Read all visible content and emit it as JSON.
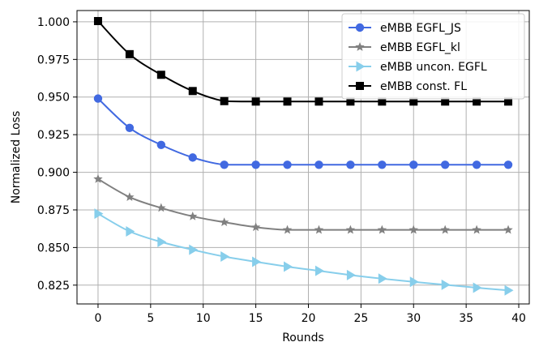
{
  "chart_data": {
    "type": "line",
    "title": "",
    "xlabel": "Rounds",
    "ylabel": "Normalized Loss",
    "xlim": [
      -2,
      41
    ],
    "ylim": [
      0.8125,
      1.0075
    ],
    "xticks": [
      0,
      5,
      10,
      15,
      20,
      25,
      30,
      35,
      40
    ],
    "yticks": [
      0.825,
      0.85,
      0.875,
      0.9,
      0.925,
      0.95,
      0.975,
      1.0
    ],
    "ytick_labels": [
      "0.825",
      "0.850",
      "0.875",
      "0.900",
      "0.925",
      "0.950",
      "0.975",
      "1.000"
    ],
    "grid": true,
    "legend_position": "top-right",
    "marker_x": [
      0,
      3,
      6,
      9,
      12,
      15,
      18,
      21,
      24,
      27,
      30,
      33,
      36,
      39
    ],
    "series": [
      {
        "name": "eMBB EGFL_JS",
        "color": "#4169e1",
        "marker": "circle",
        "values": [
          0.949,
          0.9295,
          0.9182,
          0.9098,
          0.905,
          0.905,
          0.905,
          0.905,
          0.905,
          0.905,
          0.905,
          0.905,
          0.905,
          0.905
        ]
      },
      {
        "name": "eMBB EGFL_kl",
        "color": "#808080",
        "marker": "star",
        "values": [
          0.8955,
          0.8835,
          0.8763,
          0.8707,
          0.8668,
          0.8635,
          0.8617,
          0.8617,
          0.8617,
          0.8617,
          0.8617,
          0.8617,
          0.8617,
          0.8617
        ]
      },
      {
        "name": "eMBB uncon. EGFL",
        "color": "#87ceeb",
        "marker": "triangle-right",
        "values": [
          0.8725,
          0.8607,
          0.8537,
          0.8485,
          0.844,
          0.8405,
          0.8373,
          0.8345,
          0.8317,
          0.8293,
          0.8272,
          0.8252,
          0.8233,
          0.8215
        ]
      },
      {
        "name": "eMBB const. FL",
        "color": "#000000",
        "marker": "square",
        "values": [
          1.0005,
          0.9785,
          0.9648,
          0.954,
          0.9473,
          0.947,
          0.947,
          0.947,
          0.947,
          0.947,
          0.947,
          0.947,
          0.947,
          0.947
        ]
      }
    ]
  }
}
